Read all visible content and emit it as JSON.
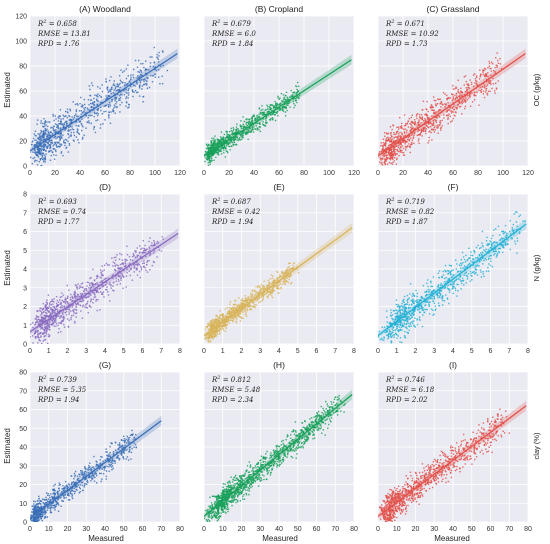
{
  "colors": {
    "panel_bg": "#eaeaf2",
    "grid": "#ffffff",
    "woodland": "#3a6fb7",
    "cropland": "#19a15a",
    "grassland": "#e3504a",
    "n_woodland": "#8a6cc1",
    "n_cropland": "#d8b55c",
    "n_grassland": "#25b2d6"
  },
  "figure": {
    "ylabel": "Estimated",
    "xlabel": "Measured",
    "row_labels": [
      "OC (g/kg)",
      "N (g/kg)",
      "clay (%)"
    ]
  },
  "chart_data": [
    {
      "type": "scatter",
      "title": "(A) Woodland",
      "row": 0,
      "col": 0,
      "xlim": [
        0,
        120
      ],
      "ylim": [
        0,
        120
      ],
      "xticks": [
        "0",
        "20",
        "40",
        "60",
        "80",
        "100",
        "120"
      ],
      "yticks": [
        "0",
        "20",
        "40",
        "60",
        "80",
        "100",
        "120"
      ],
      "stats": {
        "r2": "0.658",
        "rmse": "13.81",
        "rpd": "1.76"
      },
      "fit": {
        "x": [
          0,
          118
        ],
        "y": [
          12,
          90
        ]
      },
      "cloud": {
        "n": 900,
        "xmin": 0,
        "xmax": 110,
        "xpeak": 18,
        "slope": 0.66,
        "intercept": 12,
        "noise": 13
      },
      "color_key": "woodland"
    },
    {
      "type": "scatter",
      "title": "(B) Cropland",
      "row": 0,
      "col": 1,
      "xlim": [
        0,
        120
      ],
      "ylim": [
        0,
        120
      ],
      "xticks": [
        "0",
        "20",
        "40",
        "60",
        "80",
        "100",
        "120"
      ],
      "yticks": [],
      "stats": {
        "r2": "0.679",
        "rmse": "6.0",
        "rpd": "1.84"
      },
      "fit": {
        "x": [
          0,
          118
        ],
        "y": [
          8,
          85
        ]
      },
      "cloud": {
        "n": 900,
        "xmin": 0,
        "xmax": 80,
        "xpeak": 12,
        "slope": 0.65,
        "intercept": 8,
        "noise": 6
      },
      "color_key": "cropland"
    },
    {
      "type": "scatter",
      "title": "(C) Grassland",
      "row": 0,
      "col": 2,
      "xlim": [
        0,
        120
      ],
      "ylim": [
        0,
        120
      ],
      "xticks": [
        "0",
        "20",
        "40",
        "60",
        "80",
        "100",
        "120"
      ],
      "yticks": [],
      "stats": {
        "r2": "0.671",
        "rmse": "10.92",
        "rpd": "1.73"
      },
      "fit": {
        "x": [
          0,
          118
        ],
        "y": [
          8,
          90
        ]
      },
      "cloud": {
        "n": 900,
        "xmin": 0,
        "xmax": 100,
        "xpeak": 18,
        "slope": 0.7,
        "intercept": 8,
        "noise": 11
      },
      "color_key": "grassland"
    },
    {
      "type": "scatter",
      "title": "(D)",
      "row": 1,
      "col": 0,
      "xlim": [
        0,
        8
      ],
      "ylim": [
        0,
        8
      ],
      "xticks": [
        "0",
        "1",
        "2",
        "3",
        "4",
        "5",
        "6",
        "7",
        "8"
      ],
      "yticks": [
        "0",
        "1",
        "2",
        "3",
        "4",
        "5",
        "6",
        "7",
        "8"
      ],
      "stats": {
        "r2": "0.693",
        "rmse": "0.74",
        "rpd": "1.77"
      },
      "fit": {
        "x": [
          0,
          7.9
        ],
        "y": [
          0.65,
          5.9
        ]
      },
      "cloud": {
        "n": 900,
        "xmin": 0,
        "xmax": 7,
        "xpeak": 1.5,
        "slope": 0.66,
        "intercept": 0.65,
        "noise": 0.7
      },
      "color_key": "n_woodland"
    },
    {
      "type": "scatter",
      "title": "(E)",
      "row": 1,
      "col": 1,
      "xlim": [
        0,
        8
      ],
      "ylim": [
        0,
        8
      ],
      "xticks": [
        "0",
        "1",
        "2",
        "3",
        "4",
        "5",
        "6",
        "7",
        "8"
      ],
      "yticks": [],
      "stats": {
        "r2": "0.687",
        "rmse": "0.42",
        "rpd": "1.94"
      },
      "fit": {
        "x": [
          0,
          7.9
        ],
        "y": [
          0.45,
          6.2
        ]
      },
      "cloud": {
        "n": 1000,
        "xmin": 0,
        "xmax": 5,
        "xpeak": 1.0,
        "slope": 0.73,
        "intercept": 0.45,
        "noise": 0.4
      },
      "color_key": "n_cropland"
    },
    {
      "type": "scatter",
      "title": "(F)",
      "row": 1,
      "col": 2,
      "xlim": [
        0,
        8
      ],
      "ylim": [
        0,
        8
      ],
      "xticks": [
        "0",
        "1",
        "2",
        "3",
        "4",
        "5",
        "6",
        "7",
        "8"
      ],
      "yticks": [],
      "stats": {
        "r2": "0.719",
        "rmse": "0.82",
        "rpd": "1.87"
      },
      "fit": {
        "x": [
          0,
          7.9
        ],
        "y": [
          0.45,
          6.4
        ]
      },
      "cloud": {
        "n": 900,
        "xmin": 0,
        "xmax": 7.5,
        "xpeak": 2.3,
        "slope": 0.75,
        "intercept": 0.45,
        "noise": 0.75
      },
      "color_key": "n_grassland"
    },
    {
      "type": "scatter",
      "title": "(G)",
      "row": 2,
      "col": 0,
      "xlim": [
        0,
        80
      ],
      "ylim": [
        0,
        80
      ],
      "xticks": [
        "0",
        "10",
        "20",
        "30",
        "40",
        "50",
        "60",
        "70",
        "80"
      ],
      "yticks": [
        "0",
        "10",
        "20",
        "30",
        "40",
        "50",
        "60",
        "70",
        "80"
      ],
      "stats": {
        "r2": "0.739",
        "rmse": "5.35",
        "rpd": "1.94"
      },
      "fit": {
        "x": [
          0,
          70
        ],
        "y": [
          2,
          54
        ]
      },
      "cloud": {
        "n": 800,
        "xmin": 0,
        "xmax": 60,
        "xpeak": 6,
        "slope": 0.74,
        "intercept": 2,
        "noise": 5
      },
      "color_key": "woodland"
    },
    {
      "type": "scatter",
      "title": "(H)",
      "row": 2,
      "col": 1,
      "xlim": [
        0,
        80
      ],
      "ylim": [
        0,
        80
      ],
      "xticks": [
        "0",
        "10",
        "20",
        "30",
        "40",
        "50",
        "60",
        "70",
        "80"
      ],
      "yticks": [],
      "stats": {
        "r2": "0.812",
        "rmse": "5.48",
        "rpd": "2.34"
      },
      "fit": {
        "x": [
          0,
          79
        ],
        "y": [
          3,
          68
        ]
      },
      "cloud": {
        "n": 1300,
        "xmin": 0,
        "xmax": 72,
        "xpeak": 20,
        "slope": 0.82,
        "intercept": 3,
        "noise": 5.5
      },
      "color_key": "cropland"
    },
    {
      "type": "scatter",
      "title": "(I)",
      "row": 2,
      "col": 2,
      "xlim": [
        0,
        80
      ],
      "ylim": [
        0,
        80
      ],
      "xticks": [
        "0",
        "10",
        "20",
        "30",
        "40",
        "50",
        "60",
        "70",
        "80"
      ],
      "yticks": [],
      "stats": {
        "r2": "0.746",
        "rmse": "6.18",
        "rpd": "2.02"
      },
      "fit": {
        "x": [
          0,
          79
        ],
        "y": [
          3,
          62
        ]
      },
      "cloud": {
        "n": 1000,
        "xmin": 0,
        "xmax": 68,
        "xpeak": 15,
        "slope": 0.75,
        "intercept": 3,
        "noise": 6
      },
      "color_key": "grassland"
    }
  ]
}
